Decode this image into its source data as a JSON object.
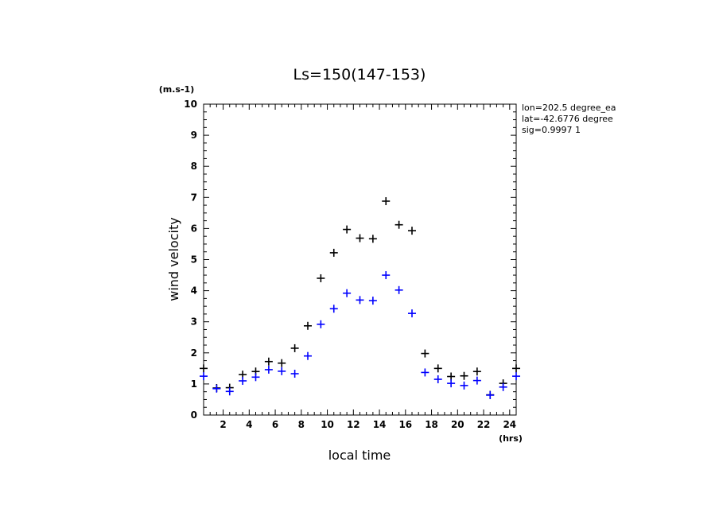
{
  "chart_data": {
    "type": "scatter",
    "title": "Ls=150(147-153)",
    "xlabel": "local time",
    "ylabel": "wind velocity",
    "x_unit": "(hrs)",
    "y_unit": "(m.s-1)",
    "xlim": [
      0.5,
      24.5
    ],
    "ylim": [
      0,
      10
    ],
    "x_ticks": [
      2,
      4,
      6,
      8,
      10,
      12,
      14,
      16,
      18,
      20,
      22,
      24
    ],
    "y_ticks": [
      0,
      1,
      2,
      3,
      4,
      5,
      6,
      7,
      8,
      9,
      10
    ],
    "annotations": [
      "lon=202.5 degree_ea",
      "lat=-42.6776 degree",
      "sig=0.9997 1"
    ],
    "grid": false,
    "series": [
      {
        "color": "#000000",
        "x": [
          0.5,
          1.5,
          2.5,
          3.5,
          4.5,
          5.5,
          6.5,
          7.5,
          8.5,
          9.5,
          10.5,
          11.5,
          12.5,
          13.5,
          14.5,
          15.5,
          16.5,
          17.5,
          18.5,
          19.5,
          20.5,
          21.5,
          22.5,
          23.5,
          24.5
        ],
        "y": [
          1.5,
          0.87,
          0.88,
          1.3,
          1.4,
          1.72,
          1.67,
          2.15,
          2.87,
          4.4,
          5.22,
          5.97,
          5.69,
          5.67,
          6.88,
          6.12,
          5.93,
          1.98,
          1.5,
          1.24,
          1.26,
          1.4,
          0.65,
          1.02,
          1.5
        ]
      },
      {
        "color": "#0000ff",
        "x": [
          0.5,
          1.5,
          2.5,
          3.5,
          4.5,
          5.5,
          6.5,
          7.5,
          8.5,
          9.5,
          10.5,
          11.5,
          12.5,
          13.5,
          14.5,
          15.5,
          16.5,
          17.5,
          18.5,
          19.5,
          20.5,
          21.5,
          22.5,
          23.5,
          24.5
        ],
        "y": [
          1.25,
          0.85,
          0.76,
          1.1,
          1.22,
          1.46,
          1.41,
          1.33,
          1.9,
          2.92,
          3.42,
          3.92,
          3.7,
          3.68,
          4.5,
          4.02,
          3.27,
          1.37,
          1.15,
          1.02,
          0.95,
          1.11,
          0.64,
          0.9,
          1.25
        ]
      }
    ]
  }
}
